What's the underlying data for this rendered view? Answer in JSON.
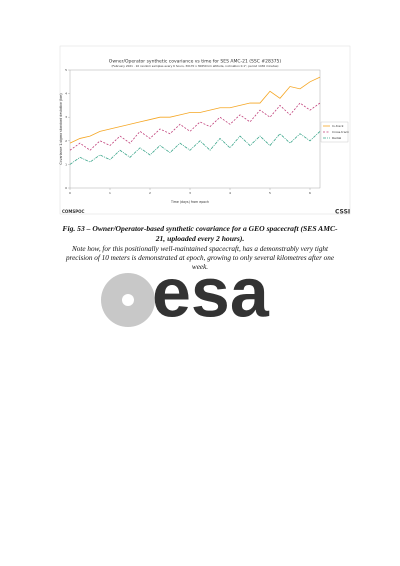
{
  "figure": {
    "chart_data": {
      "type": "line",
      "title": "Owner/Operator synthetic covariance vs time for SES AMC-21 (SSC #28375)",
      "subtitle": "(February 2021 · 10 random samples every 6 hours, 30170 x 30650 km altitude, inclination 0.1°, period 1436 minutes)",
      "x_label": "Time (days) from epoch",
      "y_label": "Covariance 1-sigma standard deviation (km)",
      "x": [
        0,
        0.25,
        0.5,
        0.75,
        1,
        1.25,
        1.5,
        1.75,
        2,
        2.25,
        2.5,
        2.75,
        3,
        3.25,
        3.5,
        3.75,
        4,
        4.25,
        4.5,
        4.75,
        5,
        5.25,
        5.5,
        5.75,
        6,
        6.25
      ],
      "series": [
        {
          "name": "In-track",
          "color": "#f5a623",
          "values": [
            1.9,
            2.1,
            2.2,
            2.4,
            2.5,
            2.6,
            2.7,
            2.8,
            2.9,
            3.0,
            3.0,
            3.1,
            3.2,
            3.2,
            3.3,
            3.4,
            3.4,
            3.5,
            3.6,
            3.6,
            4.1,
            3.8,
            4.3,
            4.2,
            4.5,
            4.7
          ]
        },
        {
          "name": "Cross-track",
          "color": "#c0407a",
          "values": [
            1.6,
            1.9,
            1.6,
            2.0,
            1.8,
            2.2,
            1.9,
            2.4,
            2.1,
            2.5,
            2.3,
            2.7,
            2.4,
            2.8,
            2.6,
            3.0,
            2.7,
            3.1,
            2.8,
            3.3,
            3.0,
            3.5,
            3.1,
            3.6,
            3.3,
            3.6
          ]
        },
        {
          "name": "Radial",
          "color": "#3aa58a",
          "values": [
            1.0,
            1.3,
            1.1,
            1.4,
            1.2,
            1.6,
            1.3,
            1.7,
            1.4,
            1.8,
            1.5,
            1.9,
            1.6,
            2.0,
            1.6,
            2.1,
            1.7,
            2.2,
            1.8,
            2.2,
            1.8,
            2.3,
            1.9,
            2.3,
            2.0,
            2.4
          ]
        }
      ],
      "xlim": [
        0,
        6.25
      ],
      "xticks": [
        0,
        1,
        2,
        3,
        4,
        5,
        6
      ],
      "ylim": [
        0,
        5
      ],
      "yticks": [
        0,
        1,
        2,
        3,
        4,
        5
      ],
      "grid": false,
      "legend": "right"
    },
    "logos": [
      "COMSPOC",
      "CSSI"
    ]
  },
  "caption": {
    "title": "Fig. 53 – Owner/Operator-based synthetic covariance for a GEO spacecraft (SES AMC-21, uploaded every 2 hours).",
    "note": "Note how, for this positionally well-maintained spacecraft, has a demonstrably very tight precision of 10 meters is demonstrated at epoch, growing to only several kilometres after one week."
  },
  "watermark": "esa"
}
